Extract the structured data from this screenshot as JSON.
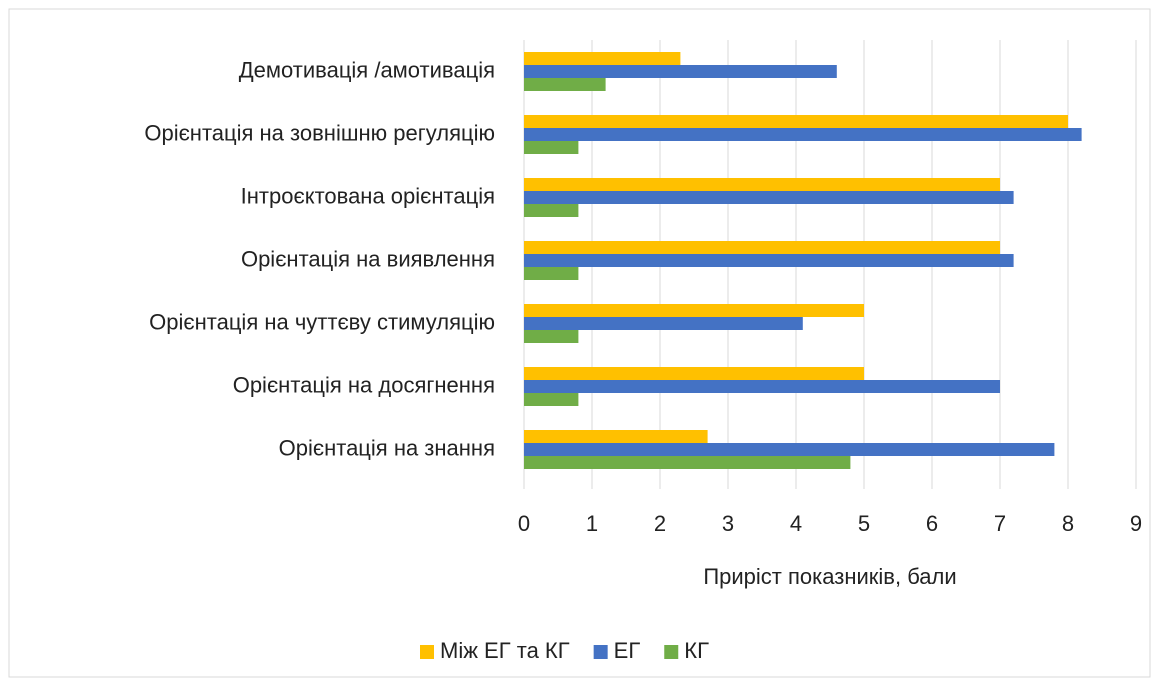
{
  "chart_data": {
    "type": "hbar",
    "xlabel": "Приріст показників, бали",
    "categories": [
      "Демотивація /амотивація",
      "Орієнтація на зовнішню регуляцію",
      "Інтроєктована орієнтація",
      "Орієнтація на виявлення",
      "Орієнтація на чуттєву стимуляцію",
      "Орієнтація на досягнення",
      "Орієнтація на знання"
    ],
    "series": [
      {
        "name": "Між ЕГ та КГ",
        "color": "#ffc000",
        "values": [
          2.3,
          8.0,
          7.0,
          7.0,
          5.0,
          5.0,
          2.7
        ]
      },
      {
        "name": "ЕГ",
        "color": "#4472c4",
        "values": [
          4.6,
          8.2,
          7.2,
          7.2,
          4.1,
          7.0,
          7.8
        ]
      },
      {
        "name": "КГ",
        "color": "#70ad47",
        "values": [
          1.2,
          0.8,
          0.8,
          0.8,
          0.8,
          0.8,
          4.8
        ]
      }
    ],
    "xlim": [
      0,
      9
    ],
    "xticks": [
      0,
      1,
      2,
      3,
      4,
      5,
      6,
      7,
      8,
      9
    ],
    "grid": true,
    "legend": "bottom"
  }
}
